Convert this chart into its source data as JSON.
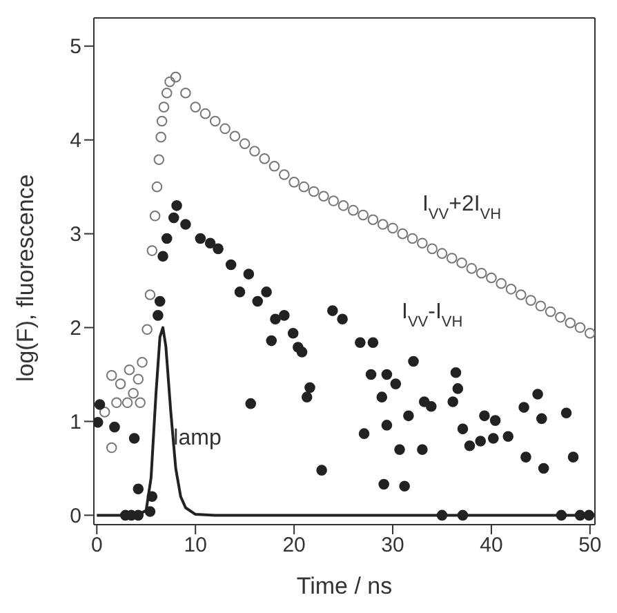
{
  "chart_data": {
    "type": "scatter",
    "xlabel": "Time  /  ns",
    "ylabel": "log(F), fluorescence",
    "xlim": [
      -0.3,
      50.5
    ],
    "ylim": [
      -0.1,
      5.3
    ],
    "xticks": [
      0,
      10,
      20,
      30,
      40,
      50
    ],
    "yticks": [
      0,
      1,
      2,
      3,
      4,
      5
    ],
    "grid": false,
    "legend": false,
    "series": [
      {
        "name": "I$_{VV}$+2I$_{VH}$",
        "marker": "circle",
        "color": "#777777",
        "x": [
          0.8,
          1.5,
          1.5,
          2.0,
          2.4,
          3.1,
          3.3,
          3.7,
          4.2,
          4.4,
          4.6,
          5.1,
          5.4,
          5.6,
          5.9,
          6.1,
          6.3,
          6.5,
          6.6,
          6.8,
          7.1,
          7.4,
          8.0,
          9,
          10,
          11,
          12,
          13,
          14,
          15,
          16,
          17,
          18,
          19,
          20,
          21,
          22,
          23,
          24,
          25,
          26,
          27,
          28,
          29,
          30,
          31,
          32,
          33,
          34,
          35,
          36,
          37,
          38,
          39,
          40,
          41,
          42,
          43,
          44,
          45,
          46,
          47,
          48,
          49,
          50
        ],
        "values": [
          1.1,
          0.72,
          1.49,
          1.2,
          1.4,
          1.2,
          1.55,
          1.3,
          1.45,
          1.2,
          1.63,
          1.98,
          2.35,
          2.82,
          3.19,
          3.5,
          3.79,
          4.03,
          4.2,
          4.35,
          4.5,
          4.62,
          4.67,
          4.5,
          4.35,
          4.28,
          4.2,
          4.12,
          4.04,
          3.96,
          3.88,
          3.8,
          3.72,
          3.63,
          3.55,
          3.5,
          3.45,
          3.4,
          3.35,
          3.3,
          3.25,
          3.2,
          3.15,
          3.1,
          3.06,
          3.0,
          2.95,
          2.9,
          2.84,
          2.79,
          2.74,
          2.69,
          2.63,
          2.58,
          2.53,
          2.47,
          2.41,
          2.35,
          2.29,
          2.23,
          2.17,
          2.11,
          2.05,
          2.0,
          1.94
        ]
      },
      {
        "name": "I$_{VV}$-I$_{VH}$",
        "marker": "circle",
        "color": "#222222",
        "x": [
          0.1,
          0.3,
          1.8,
          3.8,
          4.2,
          2.9,
          3.5,
          4.2,
          5.4,
          5.6,
          6.2,
          6.4,
          6.7,
          7.1,
          7.8,
          8.1,
          9.0,
          10.5,
          11.5,
          12.3,
          13.6,
          14.5,
          15.4,
          15.6,
          16.3,
          17.2,
          17.7,
          18.1,
          19.0,
          19.9,
          20.4,
          20.8,
          21.3,
          21.6,
          22.8,
          23.9,
          24.9,
          26.7,
          27.1,
          27.8,
          28.0,
          28.9,
          29.1,
          29.4,
          29.4,
          30.3,
          30.7,
          31.2,
          31.6,
          32.1,
          33.0,
          33.2,
          33.9,
          35.0,
          36.1,
          36.4,
          36.6,
          37.1,
          37.1,
          37.8,
          38.9,
          39.3,
          40.2,
          40.4,
          41.7,
          43.3,
          43.5,
          44.7,
          45.1,
          45.3,
          47.1,
          47.6,
          48.3,
          49.0,
          49.9
        ],
        "values": [
          0.99,
          1.18,
          0.94,
          0.82,
          0.28,
          0,
          0,
          0,
          0.04,
          0.2,
          2.13,
          2.28,
          2.76,
          2.95,
          3.17,
          3.3,
          3.1,
          2.95,
          2.9,
          2.84,
          2.67,
          2.38,
          2.57,
          1.19,
          2.28,
          2.38,
          1.86,
          2.09,
          2.13,
          1.94,
          1.79,
          1.74,
          1.26,
          1.36,
          0.48,
          2.18,
          2.09,
          1.84,
          0.87,
          1.5,
          1.84,
          1.26,
          0.33,
          1.5,
          0.96,
          1.4,
          0.7,
          0.31,
          1.06,
          1.64,
          0.7,
          1.21,
          1.16,
          0,
          1.21,
          1.52,
          1.35,
          0.92,
          0,
          0.74,
          0.79,
          1.06,
          0.82,
          1.01,
          0.84,
          1.15,
          0.62,
          1.29,
          1.03,
          0.5,
          0,
          1.09,
          0.62,
          0,
          0
        ]
      },
      {
        "name": "lamp",
        "type": "line",
        "marker": "none",
        "line_style": "solid",
        "color": "#222222",
        "x": [
          0,
          4,
          5,
          5.5,
          6,
          6.4,
          6.7,
          7,
          7.5,
          8,
          8.5,
          9,
          10,
          12,
          50
        ],
        "values": [
          0,
          0,
          0.05,
          0.4,
          1.3,
          1.9,
          2.0,
          1.8,
          1.1,
          0.5,
          0.2,
          0.08,
          0.01,
          0,
          0
        ]
      }
    ]
  }
}
